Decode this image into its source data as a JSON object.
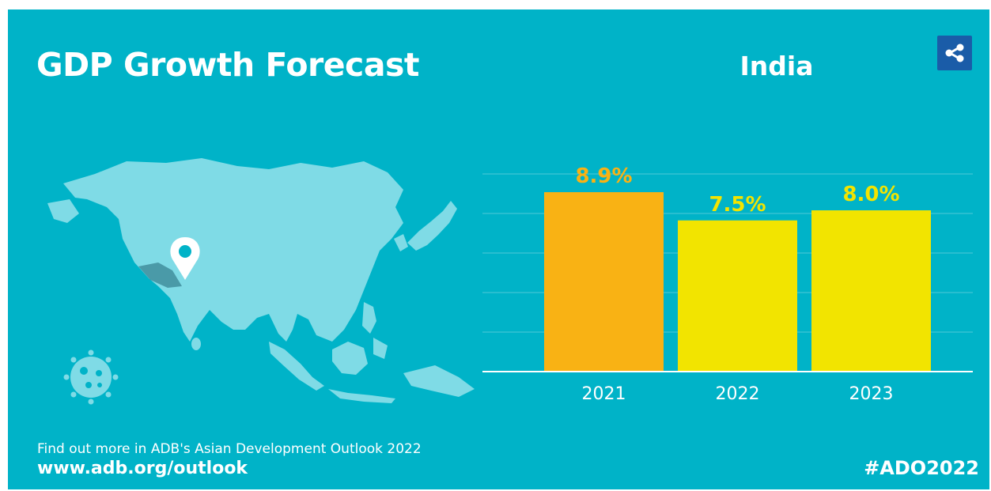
{
  "header": {
    "title": "GDP Growth Forecast",
    "country": "India"
  },
  "share_icon": "share-icon",
  "colors": {
    "background": "#00b3c8",
    "bar_highlight": "#f9b214",
    "bar_default": "#f2e400",
    "label_highlight": "#f9b214",
    "label_default": "#f2e400",
    "share_button": "#1a5ca8",
    "map_land": "#7fdbe6",
    "map_highlight": "#4a9aa8"
  },
  "chart_data": {
    "type": "bar",
    "categories": [
      "2021",
      "2022",
      "2023"
    ],
    "values": [
      8.9,
      7.5,
      8.0
    ],
    "data_labels": [
      "8.9%",
      "7.5%",
      "8.0%"
    ],
    "title": "India",
    "xlabel": "",
    "ylabel": "",
    "ylim": [
      0,
      10
    ],
    "grid": true,
    "legend": "none"
  },
  "footer": {
    "note": "Find out more in ADB's Asian Development Outlook 2022",
    "url": "www.adb.org/outlook",
    "hashtag": "#ADO2022"
  }
}
